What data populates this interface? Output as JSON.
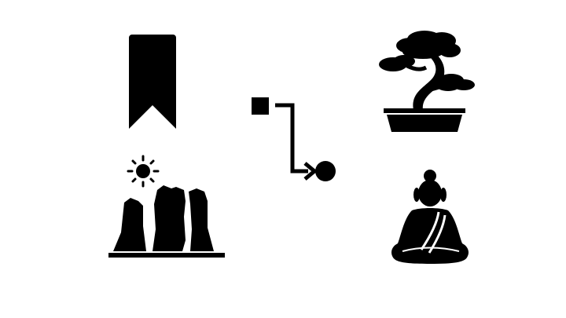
{
  "colors": {
    "background": "#ffffff",
    "ink": "#000000"
  },
  "icons": [
    "bookmark-icon",
    "flowchart-icon",
    "bonsai-tree-icon",
    "canyon-sun-icon",
    "buddha-icon"
  ]
}
